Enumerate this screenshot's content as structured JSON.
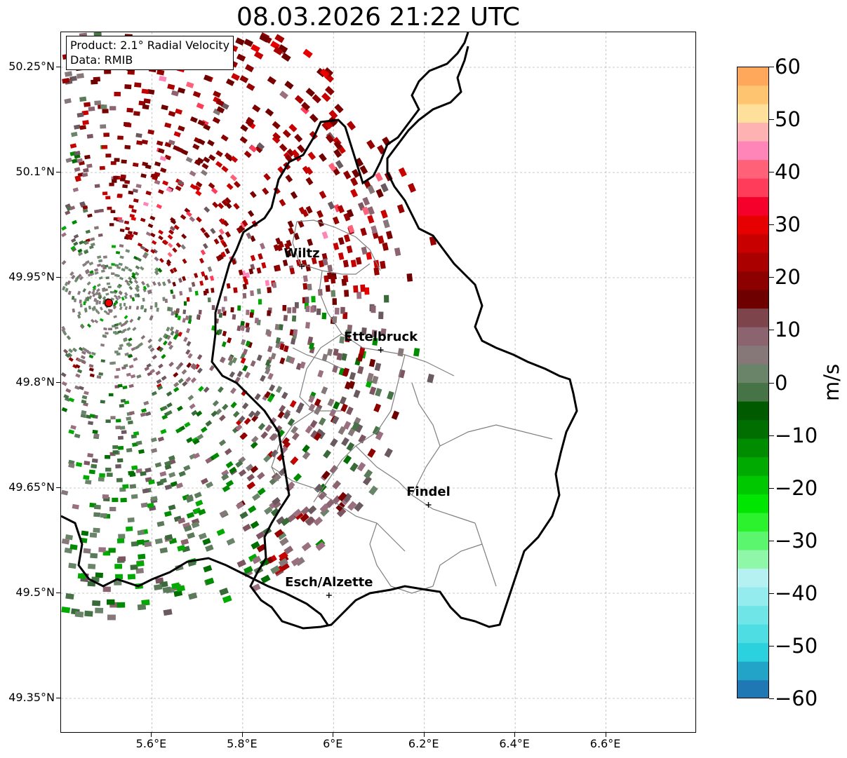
{
  "title": "08.03.2026 21:22 UTC",
  "info_box": {
    "product": "Product: 2.1° Radial Velocity",
    "data": "Data: RMIB"
  },
  "axes": {
    "lat_labels": [
      "50.25°N",
      "50.1°N",
      "49.95°N",
      "49.8°N",
      "49.65°N",
      "49.5°N",
      "49.35°N"
    ],
    "lon_labels": [
      "5.6°E",
      "5.8°E",
      "6°E",
      "6.2°E",
      "6.4°E",
      "6.6°E"
    ],
    "lat_values": [
      50.25,
      50.1,
      49.95,
      49.8,
      49.65,
      49.5,
      49.35
    ],
    "lon_values": [
      5.6,
      5.8,
      6.0,
      6.2,
      6.4,
      6.6
    ],
    "lon_range": [
      5.4,
      6.8
    ],
    "lat_range": [
      49.3,
      50.3
    ]
  },
  "places": [
    {
      "name": "Wiltz",
      "lon": 5.93,
      "lat": 49.966
    },
    {
      "name": "Ettelbruck",
      "lon": 6.104,
      "lat": 49.847
    },
    {
      "name": "Findel",
      "lon": 6.209,
      "lat": 49.626
    },
    {
      "name": "Esch/Alzette",
      "lon": 5.99,
      "lat": 49.497
    }
  ],
  "radar_site": {
    "lon": 5.505,
    "lat": 49.914
  },
  "colorbar": {
    "unit": "m/s",
    "min": -60,
    "max": 60,
    "tick_labels": [
      "60",
      "50",
      "40",
      "30",
      "20",
      "10",
      "0",
      "−10",
      "−20",
      "−30",
      "−40",
      "−50",
      "−60"
    ],
    "tick_values": [
      60,
      50,
      40,
      30,
      20,
      10,
      0,
      -10,
      -20,
      -30,
      -40,
      -50,
      -60
    ],
    "colors": [
      "#1f78b4",
      "#21a4c8",
      "#2bd2de",
      "#4ddde2",
      "#70e5e8",
      "#94ecee",
      "#b6f1f2",
      "#8ef7a8",
      "#5cf56e",
      "#2cf22e",
      "#00e600",
      "#00c800",
      "#00aa00",
      "#008c00",
      "#006e00",
      "#005a00",
      "#467446",
      "#6a846a",
      "#867878",
      "#8c6470",
      "#7d444b",
      "#6e0000",
      "#8c0000",
      "#aa0000",
      "#c80000",
      "#e60000",
      "#f5002a",
      "#ff3c5a",
      "#ff6278",
      "#ff85b8",
      "#ffb2b2",
      "#ffe09a",
      "#ffc470",
      "#ffa85c"
    ]
  }
}
